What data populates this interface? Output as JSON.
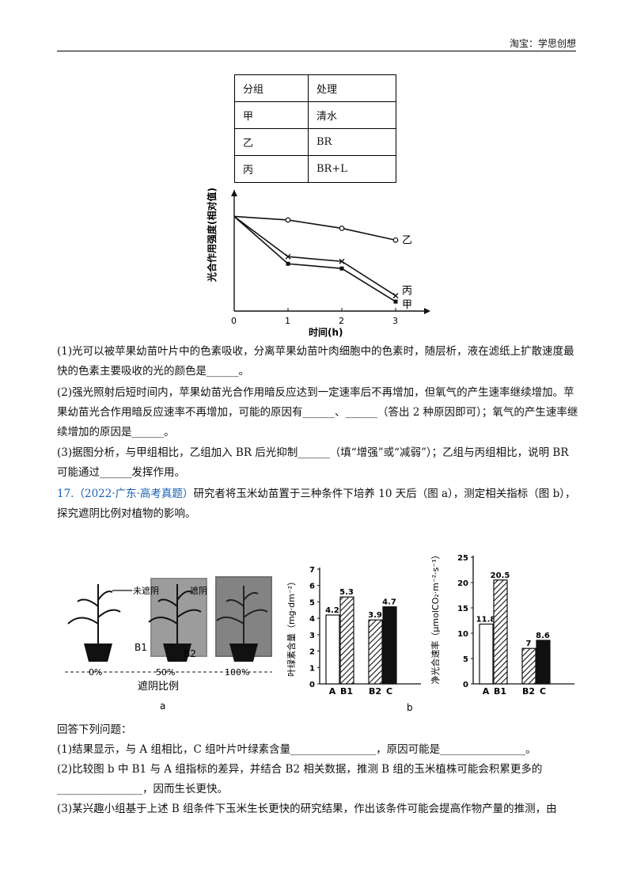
{
  "header": {
    "right": "淘宝：学思创想"
  },
  "table": {
    "head": [
      "分组",
      "处理"
    ],
    "rows": [
      [
        "甲",
        "清水"
      ],
      [
        "乙",
        "BR"
      ],
      [
        "丙",
        "BR+L"
      ]
    ]
  },
  "chart_data": [
    {
      "type": "line",
      "ylabel": "光合作用强度(相对值)",
      "xlabel": "时间(h)",
      "x": [
        0,
        1,
        2,
        3
      ],
      "series": [
        {
          "name": "乙",
          "values": [
            1.0,
            0.97,
            0.9,
            0.8
          ]
        },
        {
          "name": "丙",
          "values": [
            1.0,
            0.66,
            0.62,
            0.33
          ]
        },
        {
          "name": "甲",
          "values": [
            1.0,
            0.6,
            0.56,
            0.28
          ]
        }
      ],
      "xticks": [
        "0",
        "1",
        "2",
        "3"
      ]
    },
    {
      "type": "bar",
      "ylabel": "叶绿素含量（mg·dm⁻²）",
      "categories": [
        "A",
        "B1",
        "B2",
        "C"
      ],
      "values": [
        4.2,
        5.3,
        3.9,
        4.7
      ],
      "ylim": [
        0,
        7
      ],
      "yticks": [
        "0",
        "1",
        "2",
        "3",
        "4",
        "5",
        "6",
        "7"
      ]
    },
    {
      "type": "bar",
      "ylabel": "净光合速率（μmolCO₂·m⁻²·s⁻¹）",
      "categories": [
        "A",
        "B1",
        "B2",
        "C"
      ],
      "values": [
        11.8,
        20.5,
        7.0,
        8.6
      ],
      "ylim": [
        0,
        25
      ],
      "yticks": [
        "0",
        "5",
        "10",
        "15",
        "20",
        "25"
      ]
    }
  ],
  "figure_a": {
    "label_unshaded": "未遮阴",
    "label_shaded": "遮阴",
    "plant_b1": "B1",
    "plant_b2": "B2",
    "pct": [
      "0%",
      "50%",
      "100%"
    ],
    "axis_label": "遮阴比例",
    "caption": "a"
  },
  "figure_b": {
    "caption": "b"
  },
  "q16": {
    "p1": "(1)光可以被苹果幼苗叶片中的色素吸收，分离苹果幼苗叶肉细胞中的色素时，随层析，液在滤纸上扩散速度最快的色素主要吸收的光的颜色是______。",
    "p2": "(2)强光照射后短时间内，苹果幼苗光合作用暗反应达到一定速率后不再增加，但氧气的产生速率继续增加。苹果幼苗光合作用暗反应速率不再增加，可能的原因有______、______（答出 2 种原因即可）；氧气的产生速率继续增加的原因是______。",
    "p3": "(3)据图分析，与甲组相比，乙组加入 BR 后光抑制______（填“增强”或“减弱”）；乙组与丙组相比，说明 BR 可能通过______发挥作用。"
  },
  "q17": {
    "num": "17.",
    "source": "（2022·广东·高考真题）",
    "text": "研究者将玉米幼苗置于三种条件下培养 10 天后（图 a），测定相关指标（图 b），探究遮阴比例对植物的影响。"
  },
  "answers": {
    "intro": "回答下列问题：",
    "a1": "(1)结果显示，与 A 组相比，C 组叶片叶绿素含量________________，原因可能是________________。",
    "a2": "(2)比较图 b 中 B1 与 A 组指标的差异，并结合 B2 相关数据，推测 B 组的玉米植株可能会积累更多的________________，因而生长更快。",
    "a3": "(3)某兴趣小组基于上述 B 组条件下玉米生长更快的研究结果，作出该条件可能会提高作物产量的推测，由"
  }
}
